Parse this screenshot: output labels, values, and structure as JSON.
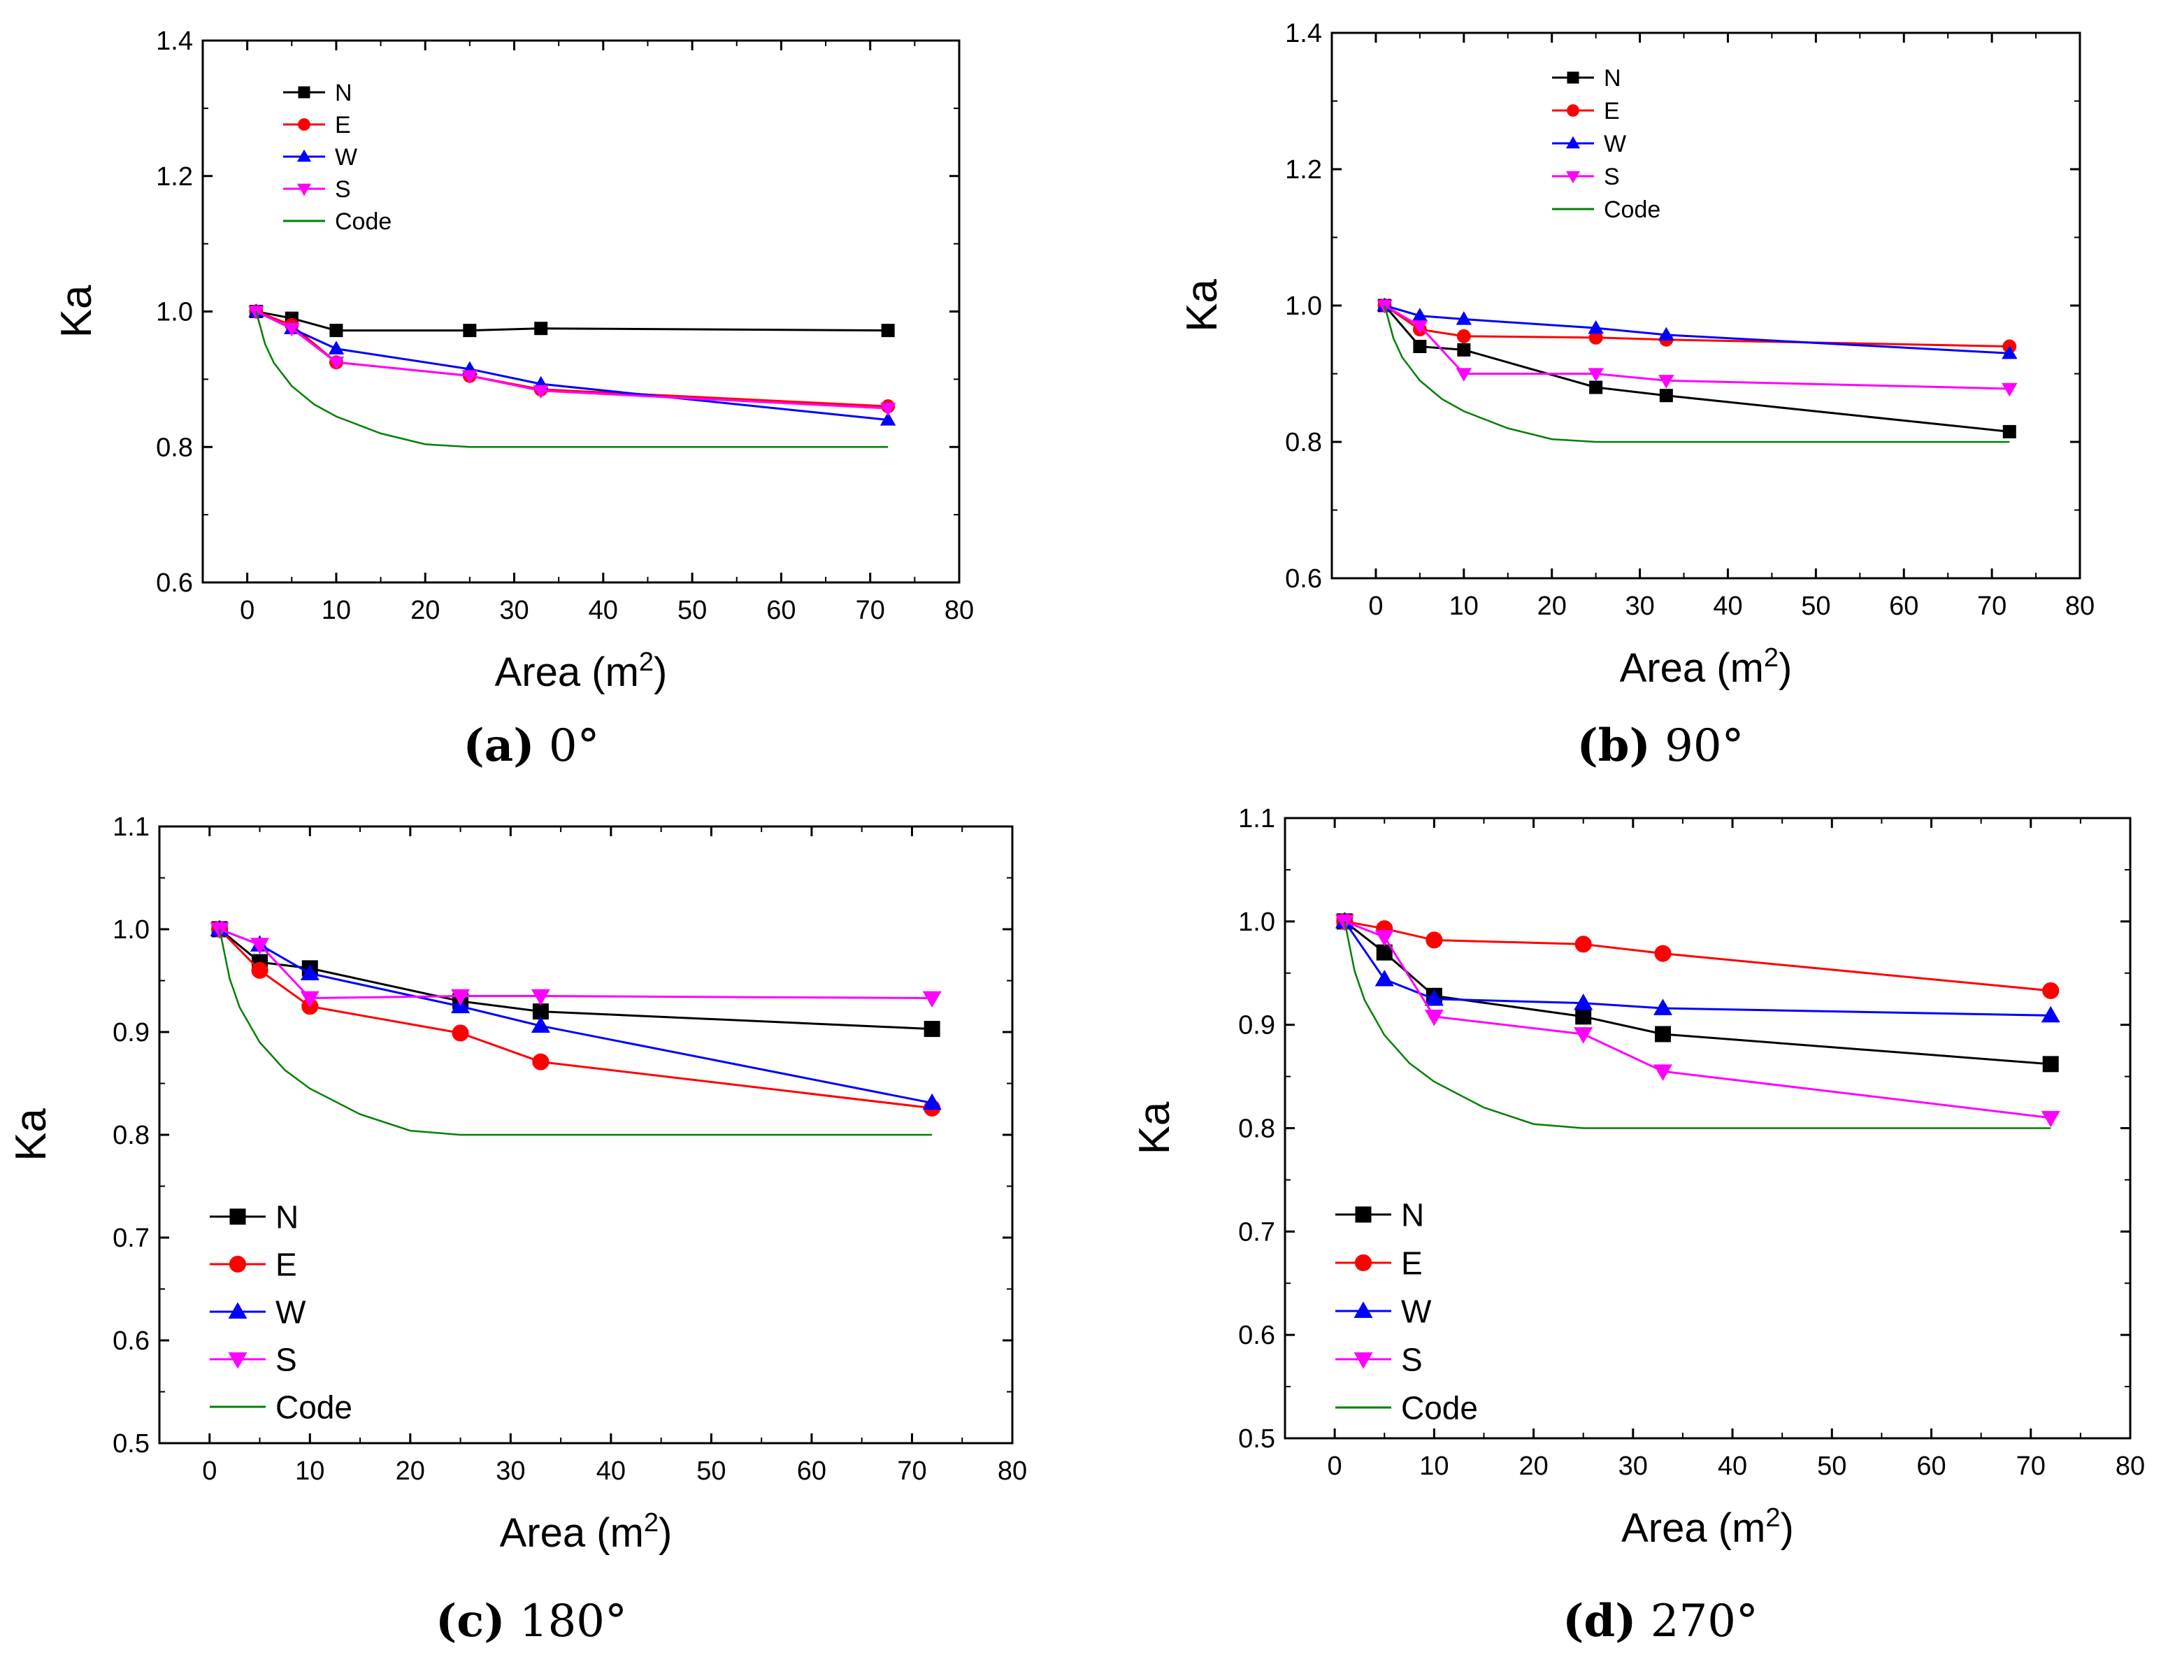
{
  "chart_data": [
    {
      "type": "line",
      "panel": "a",
      "caption": {
        "letter": "(a)",
        "text": " 0°"
      },
      "xlabel": "Area (m",
      "xlabel_sup": "2",
      "xlabel_end": ")",
      "ylabel": "Ka",
      "xlim": [
        -5,
        80
      ],
      "ylim": [
        0.6,
        1.4
      ],
      "xticks": [
        0,
        10,
        20,
        30,
        40,
        50,
        60,
        70,
        80
      ],
      "yticks": [
        0.6,
        0.8,
        1.0,
        1.2,
        1.4
      ],
      "ytick_labels": [
        "0.6",
        "0.8",
        "1.0",
        "1.2",
        "1.4"
      ],
      "legend_position": "top-left",
      "legend_size": "small",
      "series": [
        {
          "name": "N",
          "color": "#000000",
          "marker": "square",
          "x": [
            1,
            5,
            10,
            25,
            33,
            72
          ],
          "y": [
            1.0,
            0.99,
            0.972,
            0.972,
            0.975,
            0.972
          ]
        },
        {
          "name": "E",
          "color": "#ff0000",
          "marker": "circle",
          "x": [
            1,
            5,
            10,
            25,
            33,
            72
          ],
          "y": [
            1.0,
            0.98,
            0.925,
            0.905,
            0.885,
            0.86
          ]
        },
        {
          "name": "W",
          "color": "#0000ff",
          "marker": "triangle-up",
          "x": [
            1,
            5,
            10,
            25,
            33,
            72
          ],
          "y": [
            1.0,
            0.975,
            0.945,
            0.915,
            0.893,
            0.84
          ]
        },
        {
          "name": "S",
          "color": "#ff00ff",
          "marker": "triangle-down",
          "x": [
            1,
            5,
            10,
            25,
            33,
            72
          ],
          "y": [
            1.0,
            0.975,
            0.925,
            0.905,
            0.883,
            0.857
          ]
        },
        {
          "name": "Code",
          "color": "#008000",
          "marker": "none",
          "x": [
            1,
            2,
            3,
            5,
            7.5,
            10,
            15,
            20,
            25,
            40,
            55,
            72
          ],
          "y": [
            1.0,
            0.952,
            0.924,
            0.89,
            0.863,
            0.845,
            0.82,
            0.804,
            0.8,
            0.8,
            0.8,
            0.8
          ]
        }
      ]
    },
    {
      "type": "line",
      "panel": "b",
      "caption": {
        "letter": "(b)",
        "text": " 90°"
      },
      "xlabel": "Area (m",
      "xlabel_sup": "2",
      "xlabel_end": ")",
      "ylabel": "Ka",
      "xlim": [
        -5,
        80
      ],
      "ylim": [
        0.6,
        1.4
      ],
      "xticks": [
        0,
        10,
        20,
        30,
        40,
        50,
        60,
        70,
        80
      ],
      "yticks": [
        0.6,
        0.8,
        1.0,
        1.2,
        1.4
      ],
      "ytick_labels": [
        "0.6",
        "0.8",
        "1.0",
        "1.2",
        "1.4"
      ],
      "legend_position": "top-center",
      "legend_size": "small",
      "series": [
        {
          "name": "N",
          "color": "#000000",
          "marker": "square",
          "x": [
            1,
            5,
            10,
            25,
            33,
            72
          ],
          "y": [
            1.0,
            0.94,
            0.935,
            0.88,
            0.868,
            0.815
          ]
        },
        {
          "name": "E",
          "color": "#ff0000",
          "marker": "circle",
          "x": [
            1,
            5,
            10,
            25,
            33,
            72
          ],
          "y": [
            1.0,
            0.965,
            0.955,
            0.953,
            0.95,
            0.94
          ]
        },
        {
          "name": "W",
          "color": "#0000ff",
          "marker": "triangle-up",
          "x": [
            1,
            5,
            10,
            25,
            33,
            72
          ],
          "y": [
            1.0,
            0.985,
            0.98,
            0.967,
            0.957,
            0.93
          ]
        },
        {
          "name": "S",
          "color": "#ff00ff",
          "marker": "triangle-down",
          "x": [
            1,
            5,
            10,
            25,
            33,
            72
          ],
          "y": [
            1.0,
            0.97,
            0.9,
            0.9,
            0.89,
            0.878
          ]
        },
        {
          "name": "Code",
          "color": "#008000",
          "marker": "none",
          "x": [
            1,
            2,
            3,
            5,
            7.5,
            10,
            15,
            20,
            25,
            40,
            55,
            72
          ],
          "y": [
            1.0,
            0.952,
            0.924,
            0.89,
            0.863,
            0.845,
            0.82,
            0.804,
            0.8,
            0.8,
            0.8,
            0.8
          ]
        }
      ]
    },
    {
      "type": "line",
      "panel": "c",
      "caption": {
        "letter": "(c)",
        "text": " 180°"
      },
      "xlabel": "Area (m",
      "xlabel_sup": "2",
      "xlabel_end": ")",
      "ylabel": "Ka",
      "xlim": [
        -5,
        80
      ],
      "ylim": [
        0.5,
        1.1
      ],
      "xticks": [
        0,
        10,
        20,
        30,
        40,
        50,
        60,
        70,
        80
      ],
      "yticks": [
        0.5,
        0.6,
        0.7,
        0.8,
        0.9,
        1.0,
        1.1
      ],
      "ytick_labels": [
        "0.5",
        "0.6",
        "0.7",
        "0.8",
        "0.9",
        "1.0",
        "1.1"
      ],
      "legend_position": "bottom-left",
      "legend_size": "large",
      "series": [
        {
          "name": "N",
          "color": "#000000",
          "marker": "square",
          "x": [
            1,
            5,
            10,
            25,
            33,
            72
          ],
          "y": [
            1.0,
            0.968,
            0.962,
            0.93,
            0.92,
            0.903
          ]
        },
        {
          "name": "E",
          "color": "#ff0000",
          "marker": "circle",
          "x": [
            1,
            5,
            10,
            25,
            33,
            72
          ],
          "y": [
            1.0,
            0.96,
            0.925,
            0.899,
            0.871,
            0.826
          ]
        },
        {
          "name": "W",
          "color": "#0000ff",
          "marker": "triangle-up",
          "x": [
            1,
            5,
            10,
            25,
            33,
            72
          ],
          "y": [
            1.0,
            0.985,
            0.957,
            0.925,
            0.906,
            0.831
          ]
        },
        {
          "name": "S",
          "color": "#ff00ff",
          "marker": "triangle-down",
          "x": [
            1,
            5,
            10,
            25,
            33,
            72
          ],
          "y": [
            1.0,
            0.985,
            0.933,
            0.935,
            0.935,
            0.933
          ]
        },
        {
          "name": "Code",
          "color": "#008000",
          "marker": "none",
          "x": [
            1,
            2,
            3,
            5,
            7.5,
            10,
            15,
            20,
            25,
            40,
            55,
            72
          ],
          "y": [
            1.0,
            0.952,
            0.924,
            0.89,
            0.863,
            0.845,
            0.82,
            0.804,
            0.8,
            0.8,
            0.8,
            0.8
          ]
        }
      ]
    },
    {
      "type": "line",
      "panel": "d",
      "caption": {
        "letter": "(d)",
        "text": " 270°"
      },
      "xlabel": "Area (m",
      "xlabel_sup": "2",
      "xlabel_end": ")",
      "ylabel": "Ka",
      "xlim": [
        -5,
        80
      ],
      "ylim": [
        0.5,
        1.1
      ],
      "xticks": [
        0,
        10,
        20,
        30,
        40,
        50,
        60,
        70,
        80
      ],
      "yticks": [
        0.5,
        0.6,
        0.7,
        0.8,
        0.9,
        1.0,
        1.1
      ],
      "ytick_labels": [
        "0.5",
        "0.6",
        "0.7",
        "0.8",
        "0.9",
        "1.0",
        "1.1"
      ],
      "legend_position": "bottom-left",
      "legend_size": "large",
      "series": [
        {
          "name": "N",
          "color": "#000000",
          "marker": "square",
          "x": [
            1,
            5,
            10,
            25,
            33,
            72
          ],
          "y": [
            1.0,
            0.97,
            0.928,
            0.908,
            0.891,
            0.862
          ]
        },
        {
          "name": "E",
          "color": "#ff0000",
          "marker": "circle",
          "x": [
            1,
            5,
            10,
            25,
            33,
            72
          ],
          "y": [
            1.0,
            0.993,
            0.982,
            0.978,
            0.969,
            0.933
          ]
        },
        {
          "name": "W",
          "color": "#0000ff",
          "marker": "triangle-up",
          "x": [
            1,
            5,
            10,
            25,
            33,
            72
          ],
          "y": [
            1.0,
            0.944,
            0.925,
            0.921,
            0.916,
            0.909
          ]
        },
        {
          "name": "S",
          "color": "#ff00ff",
          "marker": "triangle-down",
          "x": [
            1,
            5,
            10,
            25,
            33,
            72
          ],
          "y": [
            1.0,
            0.985,
            0.908,
            0.891,
            0.855,
            0.81
          ]
        },
        {
          "name": "Code",
          "color": "#008000",
          "marker": "none",
          "x": [
            1,
            2,
            3,
            5,
            7.5,
            10,
            15,
            20,
            25,
            40,
            55,
            72
          ],
          "y": [
            1.0,
            0.952,
            0.924,
            0.89,
            0.863,
            0.845,
            0.82,
            0.804,
            0.8,
            0.8,
            0.8,
            0.8
          ]
        }
      ]
    }
  ]
}
